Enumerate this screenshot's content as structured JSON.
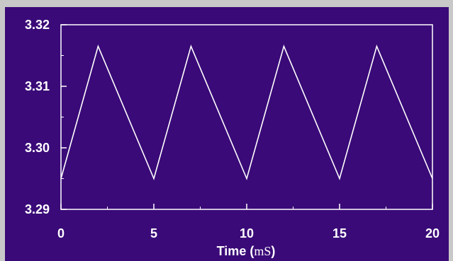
{
  "chart_data": {
    "type": "line",
    "title": "",
    "xlabel": "Time (",
    "xlabel_unit": "mS",
    "xlabel_close": ")",
    "ylabel": "",
    "xlim": [
      0,
      20
    ],
    "ylim": [
      3.29,
      3.32
    ],
    "x_ticks": [
      0,
      5,
      10,
      15,
      20
    ],
    "x_tick_labels": [
      "0",
      "5",
      "10",
      "15",
      "20"
    ],
    "y_ticks": [
      3.29,
      3.3,
      3.31,
      3.32
    ],
    "y_tick_labels": [
      "3.29",
      "3.30",
      "3.31",
      "3.32"
    ],
    "grid": false,
    "legend": "none",
    "colors": {
      "background": "#3a0a78",
      "outer": "#c8c8c8",
      "line": "#ffffff",
      "axes": "#ffffff"
    },
    "series": [
      {
        "x": [
          0,
          2,
          5,
          7,
          10,
          12,
          15,
          17,
          20
        ],
        "y": [
          3.295,
          3.3165,
          3.295,
          3.3165,
          3.295,
          3.3165,
          3.295,
          3.3165,
          3.295
        ]
      }
    ]
  }
}
